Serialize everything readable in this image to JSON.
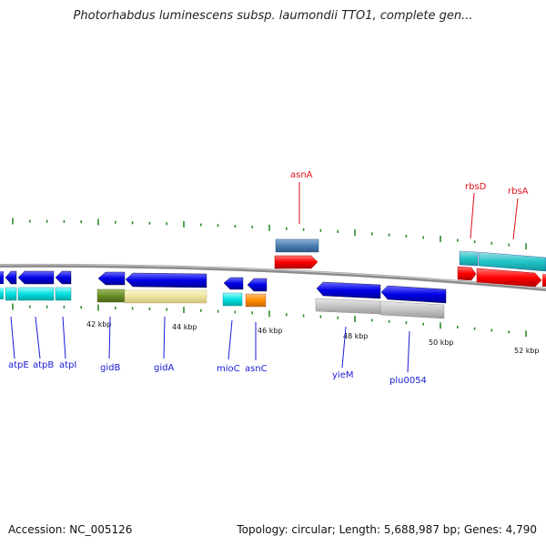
{
  "header": {
    "title": "Photorhabdus luminescens subsp. laumondii TTO1, complete gen..."
  },
  "footer": {
    "accession": "Accession: NC_005126",
    "topology": "Topology: circular; Length: 5,688,987 bp; Genes: 4,790"
  },
  "colors": {
    "backbone": "#8c8c8c",
    "tick": "#2e8b2e",
    "forward_label": "#e0121a",
    "reverse_label": "#1a1ad8"
  },
  "scale": {
    "labels": [
      "42 kbp",
      "44 kbp",
      "46 kbp",
      "48 kbp",
      "50 kbp",
      "52 kbp"
    ]
  },
  "genes": {
    "forward": [
      "asnA",
      "rbsD",
      "rbsA"
    ],
    "reverse": [
      "atpE",
      "atpB",
      "atpI",
      "gidB",
      "gidA",
      "mioC",
      "asnC",
      "yieM",
      "plu0054"
    ]
  }
}
